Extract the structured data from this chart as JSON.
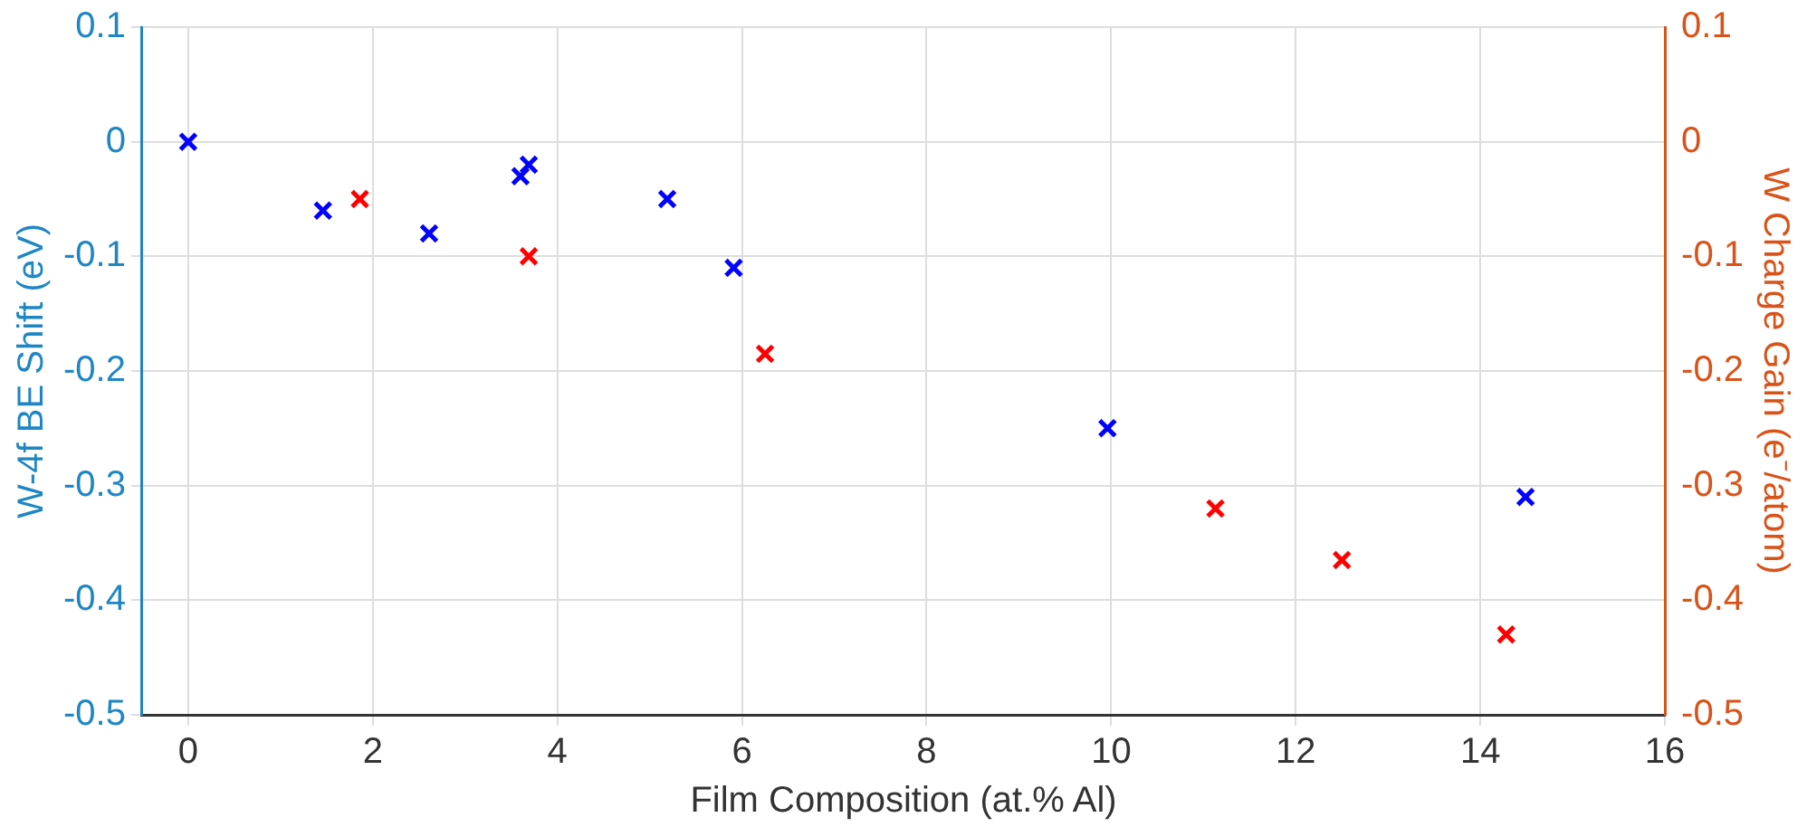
{
  "chart_data": {
    "type": "scatter",
    "xlabel": "Film Composition (at.% Al)",
    "ylabel": "W-4f BE Shift (eV)",
    "y2label": "W Charge Gain (e⁻/atom)",
    "xlim": [
      -0.5,
      16
    ],
    "xticks": [
      0,
      2,
      4,
      6,
      8,
      10,
      12,
      14,
      16
    ],
    "ylim": [
      -0.5,
      0.1
    ],
    "yticks": [
      -0.5,
      -0.4,
      -0.3,
      -0.2,
      -0.1,
      0,
      0.1
    ],
    "y2lim": [
      -0.5,
      0.1
    ],
    "y2ticks": [
      -0.5,
      -0.4,
      -0.3,
      -0.2,
      -0.1,
      0,
      0.1
    ],
    "grid": true,
    "legend": false,
    "marker": "cross",
    "series": [
      {
        "color": "#0000ff",
        "x": [
          0,
          1.46,
          2.61,
          3.6,
          3.69,
          5.19,
          5.91,
          9.96,
          14.49
        ],
        "values": [
          0,
          -0.06,
          -0.08,
          -0.03,
          -0.02,
          -0.05,
          -0.11,
          -0.25,
          -0.31
        ]
      },
      {
        "color": "#ff0000",
        "axis": "y2",
        "x": [
          1.86,
          3.69,
          6.25,
          11.13,
          12.5,
          14.28
        ],
        "values": [
          -0.05,
          -0.1,
          -0.185,
          -0.32,
          -0.365,
          -0.43
        ]
      }
    ]
  }
}
